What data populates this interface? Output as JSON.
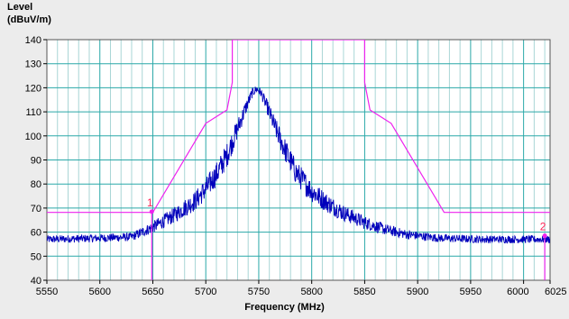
{
  "chart_data": {
    "type": "line",
    "ylabel_line1": "Level",
    "ylabel_line2": "(dBuV/m)",
    "xlabel": "Frequency (MHz)",
    "xlim": [
      5550,
      6025
    ],
    "ylim": [
      40,
      140
    ],
    "xticks": [
      5550,
      5600,
      5650,
      5700,
      5750,
      5800,
      5850,
      5900,
      5950,
      6000,
      6025
    ],
    "yticks": [
      40,
      50,
      60,
      70,
      80,
      90,
      100,
      110,
      120,
      130,
      140
    ],
    "grid": true,
    "colors": {
      "background": "#ececec",
      "plot_background": "#ffffff",
      "major_grid": "#2aa8a8",
      "minor_grid": "#a9d6d6",
      "limit_line": "#ee22ee",
      "trace": "#0000bb",
      "marker_label": "#ff2255"
    },
    "limit_line": {
      "x": [
        5550,
        5650,
        5700,
        5720,
        5725,
        5725,
        5850,
        5850,
        5855,
        5875,
        5925,
        6025
      ],
      "y": [
        68.2,
        68.2,
        105.2,
        110.8,
        122.2,
        140,
        140,
        122.2,
        110.8,
        105.2,
        68.2,
        68.2
      ]
    },
    "trace": {
      "peak_freq": 5747,
      "peak_level": 120,
      "floor_level": 57,
      "noise_amplitude": 1.6,
      "shape_x": [
        5550,
        5600,
        5630,
        5650,
        5670,
        5690,
        5700,
        5710,
        5720,
        5730,
        5738,
        5744,
        5748,
        5752,
        5758,
        5765,
        5775,
        5785,
        5800,
        5815,
        5830,
        5850,
        5870,
        5890,
        5920,
        5960,
        6000,
        6025
      ],
      "shape_y": [
        57,
        57.5,
        58,
        62,
        67,
        73,
        78,
        84,
        92,
        103,
        112,
        118,
        119.5,
        118,
        112,
        104,
        94,
        85,
        77,
        72,
        68,
        64,
        61,
        59,
        57.5,
        57,
        57,
        57
      ]
    },
    "markers": [
      {
        "label": "1",
        "x": 5649,
        "y": 68.5
      },
      {
        "label": "2",
        "x": 6020,
        "y": 58.5
      }
    ]
  }
}
